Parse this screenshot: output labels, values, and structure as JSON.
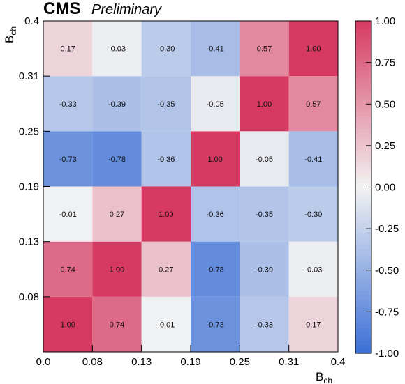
{
  "header": {
    "experiment": "CMS",
    "status": "Preliminary"
  },
  "chart_data": {
    "type": "heatmap",
    "xlabel": {
      "main": "B",
      "sub": "ch"
    },
    "ylabel": {
      "main": "B",
      "sub": "ch"
    },
    "bin_edges": [
      0.0,
      0.08,
      0.13,
      0.19,
      0.25,
      0.31,
      0.4
    ],
    "x_tick_labels": [
      "0.0",
      "0.08",
      "0.13",
      "0.19",
      "0.25",
      "0.31",
      "0.4"
    ],
    "y_tick_labels": [
      "0.08",
      "0.13",
      "0.19",
      "0.25",
      "0.31",
      "0.4"
    ],
    "matrix": [
      [
        1.0,
        0.74,
        -0.01,
        -0.73,
        -0.33,
        0.17
      ],
      [
        0.74,
        1.0,
        0.27,
        -0.78,
        -0.39,
        -0.03
      ],
      [
        -0.01,
        0.27,
        1.0,
        -0.36,
        -0.35,
        -0.3
      ],
      [
        -0.73,
        -0.78,
        -0.36,
        1.0,
        -0.05,
        -0.41
      ],
      [
        -0.33,
        -0.39,
        -0.35,
        -0.05,
        1.0,
        0.57
      ],
      [
        0.17,
        -0.03,
        -0.3,
        -0.41,
        0.57,
        1.0
      ]
    ],
    "cell_labels": [
      [
        "1.00",
        "0.74",
        "-0.01",
        "-0.73",
        "-0.33",
        "0.17"
      ],
      [
        "0.74",
        "1.00",
        "0.27",
        "-0.78",
        "-0.39",
        "-0.03"
      ],
      [
        "-0.01",
        "0.27",
        "1.00",
        "-0.36",
        "-0.35",
        "-0.30"
      ],
      [
        "-0.73",
        "-0.78",
        "-0.36",
        "1.00",
        "-0.05",
        "-0.41"
      ],
      [
        "-0.33",
        "-0.39",
        "-0.35",
        "-0.05",
        "1.00",
        "0.57"
      ],
      [
        "0.17",
        "-0.03",
        "-0.30",
        "-0.41",
        "0.57",
        "1.00"
      ]
    ],
    "zlim": [
      -1.0,
      1.0
    ],
    "colorbar_ticks": [
      1.0,
      0.75,
      0.5,
      0.25,
      0.0,
      -0.25,
      -0.5,
      -0.75,
      -1.0
    ],
    "colorbar_tick_labels": [
      "1.00",
      "0.75",
      "0.50",
      "0.25",
      "0.00",
      "-0.25",
      "-0.50",
      "-0.75",
      "-1.00"
    ],
    "colormap": {
      "low": "#3b6fd6",
      "mid": "#f2f2f2",
      "high": "#d63a63"
    },
    "grid": false
  }
}
